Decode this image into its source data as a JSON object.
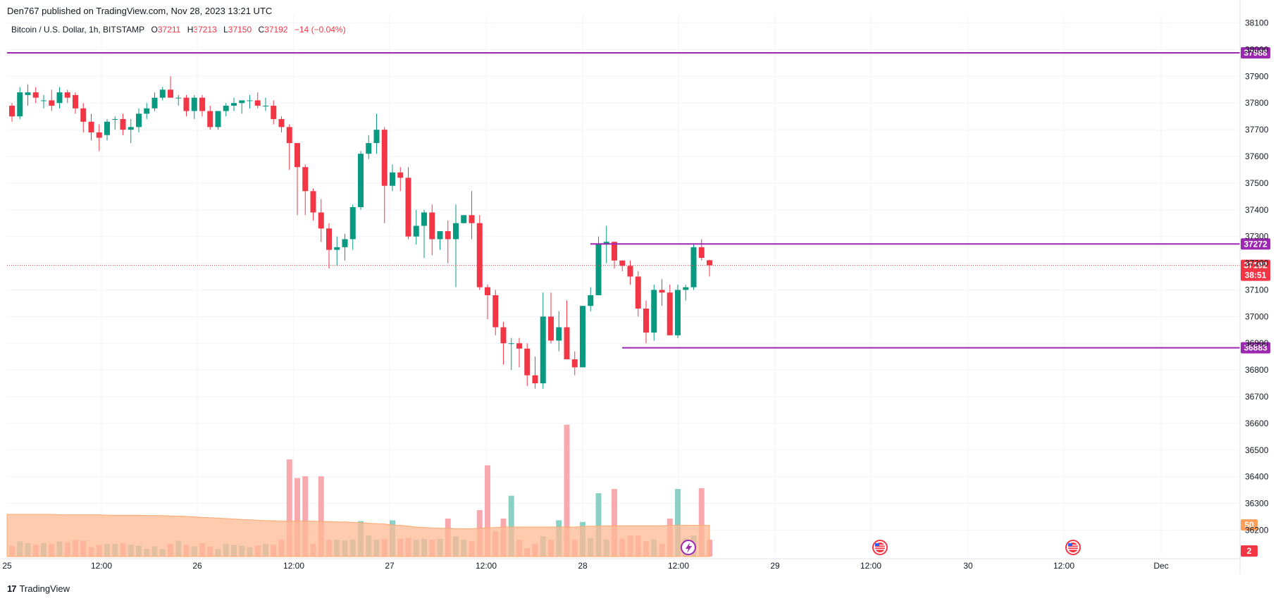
{
  "header": {
    "published": "Den767 published on TradingView.com, Nov 28, 2023 13:21 UTC"
  },
  "legend": {
    "symbol": "Bitcoin / U.S. Dollar, 1h, BITSTAMP",
    "open_label": "O",
    "open": "37211",
    "high_label": "H",
    "high": "37213",
    "low_label": "L",
    "low": "37150",
    "close_label": "C",
    "close": "37192",
    "change": "−14 (−0.04%)"
  },
  "footer": {
    "logo": "17",
    "brand": "TradingView"
  },
  "colors": {
    "up": "#089981",
    "down": "#f23645",
    "level": "#9c27b0",
    "vol_up": "#8ad0c4",
    "vol_down": "#f7a9ae",
    "vol_ma": "#ffb994",
    "grid": "#f0f3fa",
    "text": "#131722"
  },
  "chart_data": {
    "type": "candlestick",
    "y_axis": {
      "ticks": [
        "38100",
        "38000",
        "37900",
        "37800",
        "37700",
        "37600",
        "37500",
        "37400",
        "37300",
        "37200",
        "37100",
        "37000",
        "36900",
        "36800",
        "36700",
        "36600",
        "36500",
        "36400",
        "36300",
        "36200"
      ],
      "range": [
        36180,
        38120
      ]
    },
    "x_axis": {
      "tick_labels": [
        "25",
        "12:00",
        "26",
        "12:00",
        "27",
        "12:00",
        "28",
        "12:00",
        "29",
        "12:00",
        "30",
        "12:00",
        "Dec"
      ]
    },
    "levels": [
      {
        "label": "37988",
        "value": 37988
      },
      {
        "label": "37272",
        "value": 37272
      },
      {
        "label": "36883",
        "value": 36883
      }
    ],
    "last_price": {
      "label": "37192",
      "countdown": "38:51",
      "value": 37192
    },
    "volume_ma_tag": "50",
    "volume_tag2": "2",
    "candles": [
      [
        37790,
        37800,
        37730,
        37750
      ],
      [
        37750,
        37860,
        37740,
        37840
      ],
      [
        37830,
        37870,
        37790,
        37840
      ],
      [
        37840,
        37860,
        37800,
        37820
      ],
      [
        37810,
        37830,
        37780,
        37810
      ],
      [
        37810,
        37850,
        37770,
        37790
      ],
      [
        37800,
        37860,
        37780,
        37840
      ],
      [
        37840,
        37850,
        37800,
        37820
      ],
      [
        37830,
        37840,
        37760,
        37780
      ],
      [
        37780,
        37800,
        37690,
        37730
      ],
      [
        37730,
        37760,
        37660,
        37690
      ],
      [
        37690,
        37720,
        37620,
        37670
      ],
      [
        37680,
        37740,
        37660,
        37730
      ],
      [
        37740,
        37750,
        37700,
        37740
      ],
      [
        37740,
        37760,
        37680,
        37700
      ],
      [
        37700,
        37740,
        37650,
        37710
      ],
      [
        37710,
        37780,
        37690,
        37760
      ],
      [
        37760,
        37800,
        37740,
        37780
      ],
      [
        37780,
        37840,
        37770,
        37820
      ],
      [
        37820,
        37860,
        37810,
        37850
      ],
      [
        37850,
        37900,
        37820,
        37820
      ],
      [
        37820,
        37830,
        37790,
        37820
      ],
      [
        37820,
        37830,
        37750,
        37770
      ],
      [
        37770,
        37830,
        37740,
        37820
      ],
      [
        37820,
        37830,
        37750,
        37770
      ],
      [
        37770,
        37790,
        37700,
        37710
      ],
      [
        37710,
        37770,
        37700,
        37770
      ],
      [
        37770,
        37800,
        37750,
        37790
      ],
      [
        37790,
        37820,
        37770,
        37800
      ],
      [
        37800,
        37810,
        37760,
        37810
      ],
      [
        37810,
        37830,
        37780,
        37810
      ],
      [
        37810,
        37840,
        37780,
        37790
      ],
      [
        37790,
        37820,
        37770,
        37790
      ],
      [
        37790,
        37810,
        37720,
        37740
      ],
      [
        37740,
        37750,
        37690,
        37710
      ],
      [
        37710,
        37720,
        37550,
        37650
      ],
      [
        37650,
        37650,
        37380,
        37560
      ],
      [
        37560,
        37570,
        37380,
        37470
      ],
      [
        37470,
        37480,
        37360,
        37390
      ],
      [
        37390,
        37440,
        37280,
        37330
      ],
      [
        37330,
        37350,
        37180,
        37250
      ],
      [
        37250,
        37300,
        37190,
        37260
      ],
      [
        37260,
        37310,
        37210,
        37290
      ],
      [
        37290,
        37420,
        37250,
        37410
      ],
      [
        37410,
        37620,
        37400,
        37610
      ],
      [
        37610,
        37680,
        37590,
        37650
      ],
      [
        37650,
        37760,
        37610,
        37700
      ],
      [
        37700,
        37710,
        37350,
        37490
      ],
      [
        37490,
        37570,
        37470,
        37540
      ],
      [
        37540,
        37560,
        37470,
        37520
      ],
      [
        37520,
        37560,
        37290,
        37300
      ],
      [
        37300,
        37400,
        37270,
        37340
      ],
      [
        37340,
        37400,
        37220,
        37390
      ],
      [
        37390,
        37420,
        37230,
        37290
      ],
      [
        37290,
        37310,
        37250,
        37320
      ],
      [
        37320,
        37360,
        37200,
        37290
      ],
      [
        37290,
        37420,
        37110,
        37350
      ],
      [
        37350,
        37380,
        37350,
        37380
      ],
      [
        37380,
        37470,
        37290,
        37350
      ],
      [
        37350,
        37380,
        37100,
        37110
      ],
      [
        37110,
        37120,
        36990,
        37080
      ],
      [
        37080,
        37100,
        36930,
        36960
      ],
      [
        36960,
        36980,
        36820,
        36900
      ],
      [
        36900,
        36920,
        36800,
        36900
      ],
      [
        36900,
        36920,
        36810,
        36880
      ],
      [
        36880,
        36900,
        36740,
        36780
      ],
      [
        36780,
        36850,
        36730,
        36750
      ],
      [
        36750,
        37090,
        36730,
        37000
      ],
      [
        37000,
        37090,
        36900,
        36910
      ],
      [
        36910,
        37020,
        36870,
        36960
      ],
      [
        36960,
        37060,
        36850,
        36840
      ],
      [
        36840,
        36870,
        36780,
        36810
      ],
      [
        36810,
        37040,
        36810,
        37040
      ],
      [
        37040,
        37110,
        37020,
        37080
      ],
      [
        37080,
        37300,
        37080,
        37270
      ],
      [
        37270,
        37340,
        37200,
        37280
      ],
      [
        37280,
        37280,
        37180,
        37210
      ],
      [
        37210,
        37210,
        37170,
        37190
      ],
      [
        37190,
        37210,
        37120,
        37150
      ],
      [
        37150,
        37170,
        37000,
        37030
      ],
      [
        37030,
        37060,
        36900,
        36940
      ],
      [
        36940,
        37120,
        36910,
        37100
      ],
      [
        37100,
        37140,
        37040,
        37090
      ],
      [
        37090,
        37120,
        36930,
        36930
      ],
      [
        36930,
        37120,
        36920,
        37100
      ],
      [
        37100,
        37120,
        37060,
        37110
      ],
      [
        37110,
        37270,
        37100,
        37260
      ],
      [
        37260,
        37290,
        37210,
        37220
      ],
      [
        37211,
        37213,
        37150,
        37192
      ]
    ],
    "volume": [
      25,
      36,
      32,
      28,
      32,
      30,
      36,
      34,
      40,
      38,
      22,
      28,
      30,
      30,
      32,
      28,
      26,
      18,
      24,
      18,
      30,
      38,
      28,
      24,
      32,
      24,
      18,
      30,
      28,
      26,
      22,
      26,
      30,
      28,
      40,
      230,
      186,
      190,
      30,
      190,
      40,
      40,
      38,
      40,
      84,
      50,
      40,
      42,
      86,
      42,
      44,
      40,
      42,
      40,
      42,
      90,
      48,
      40,
      36,
      110,
      216,
      60,
      90,
      144,
      40,
      20,
      30,
      48,
      40,
      86,
      312,
      40,
      82,
      44,
      150,
      40,
      160,
      42,
      50,
      50,
      36,
      40,
      30,
      90,
      160,
      44,
      50,
      162,
      40
    ],
    "volume_ma": [
      100,
      100,
      100,
      100,
      100,
      100,
      99,
      99,
      99,
      99,
      99,
      99,
      98,
      98,
      98,
      98,
      98,
      97,
      97,
      97,
      96,
      96,
      95,
      94,
      93,
      92,
      91,
      90,
      89,
      88,
      87,
      86,
      85,
      85,
      84,
      84,
      84,
      84,
      84,
      83,
      83,
      82,
      82,
      81,
      80,
      79,
      78,
      77,
      75,
      74,
      72,
      70,
      69,
      68,
      67,
      67,
      66,
      66,
      66,
      67,
      68,
      69,
      70,
      70,
      70,
      70,
      70,
      70,
      70,
      70,
      70,
      70,
      71,
      72,
      72,
      73,
      73,
      73,
      73,
      73,
      73,
      73,
      73,
      74,
      74,
      74,
      74,
      74,
      74
    ]
  }
}
